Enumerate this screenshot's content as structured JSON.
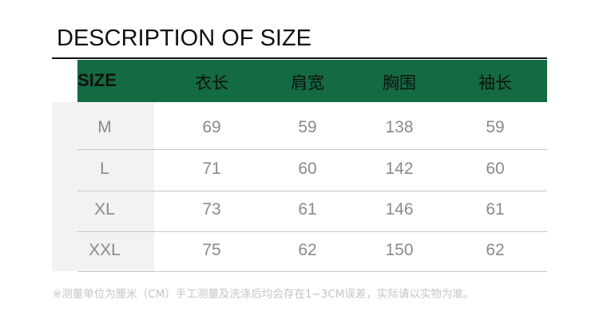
{
  "title": "DESCRIPTION OF SIZE",
  "colors": {
    "header_bg": "#146a42",
    "size_column_bg": "#f2f2f2",
    "value_text": "#8a8a8a"
  },
  "table": {
    "headers": [
      "SIZE",
      "衣长",
      "肩宽",
      "胸围",
      "袖长"
    ],
    "rows": [
      [
        "M",
        "69",
        "59",
        "138",
        "59"
      ],
      [
        "L",
        "71",
        "60",
        "142",
        "60"
      ],
      [
        "XL",
        "73",
        "61",
        "146",
        "61"
      ],
      [
        "XXL",
        "75",
        "62",
        "150",
        "62"
      ]
    ]
  },
  "note": "※测量单位为厘米（CM）手工测量及洗涤后均会存在1~3CM误差，实际请以实物为准。"
}
